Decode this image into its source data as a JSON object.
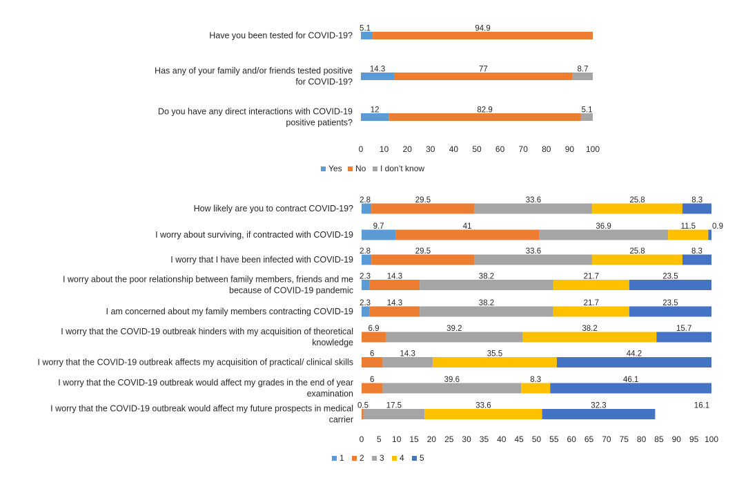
{
  "chart_data": [
    {
      "type": "bar",
      "orientation": "horizontal",
      "stacked": true,
      "categories": [
        "Have you been tested for COVID-19?",
        "Has any of your family and/or friends tested positive for COVID-19?",
        "Do you have any direct interactions with COVID-19 positive patients?"
      ],
      "series": [
        {
          "name": "Yes",
          "color": "#5B9BD5",
          "values": [
            5.1,
            14.3,
            12
          ]
        },
        {
          "name": "No",
          "color": "#ED7D31",
          "values": [
            94.9,
            77,
            82.9
          ]
        },
        {
          "name": "I don’t know",
          "color": "#A5A5A5",
          "values": [
            0,
            8.7,
            5.1
          ]
        }
      ],
      "xlim": [
        0,
        100
      ],
      "xticks": [
        0,
        10,
        20,
        30,
        40,
        50,
        60,
        70,
        80,
        90,
        100
      ],
      "legend_position": "bottom",
      "grid": false
    },
    {
      "type": "bar",
      "orientation": "horizontal",
      "stacked": true,
      "categories": [
        "How likely are you to contract COVID-19?",
        "I worry about surviving, if contracted with COVID-19",
        "I worry that I have been infected with COVID-19",
        "I worry about the poor relationship between family members, friends and me because of COVID-19 pandemic",
        "I am concerned about my family members contracting COVID-19",
        "I worry that the COVID-19 outbreak hinders with my acquisition of theoretical knowledge",
        "I worry that the COVID-19 outbreak affects my acquisition of practical/ clinical skills",
        "I worry that the COVID-19 outbreak would affect my grades in the end of year examination",
        "I worry that the COVID-19 outbreak would affect my future prospects in medical carrier"
      ],
      "series": [
        {
          "name": "1",
          "color": "#5B9BD5",
          "values": [
            2.8,
            9.7,
            2.8,
            2.3,
            2.3,
            0,
            0,
            0,
            0
          ]
        },
        {
          "name": "2",
          "color": "#ED7D31",
          "values": [
            29.5,
            41,
            29.5,
            14.3,
            14.3,
            6.9,
            6,
            6,
            0.5
          ]
        },
        {
          "name": "3",
          "color": "#A5A5A5",
          "values": [
            33.6,
            36.9,
            33.6,
            38.2,
            38.2,
            39.2,
            14.3,
            39.6,
            17.5
          ]
        },
        {
          "name": "4",
          "color": "#FFC000",
          "values": [
            25.8,
            11.5,
            25.8,
            21.7,
            21.7,
            38.2,
            35.5,
            8.3,
            33.6
          ]
        },
        {
          "name": "5",
          "color": "#4472C4",
          "values": [
            8.3,
            0.9,
            8.3,
            23.5,
            23.5,
            15.7,
            44.2,
            46.1,
            32.3
          ]
        }
      ],
      "extra_values": [
        0,
        0,
        0,
        0,
        0,
        0,
        0,
        0,
        16.1
      ],
      "xlim": [
        0,
        100
      ],
      "xticks": [
        0,
        5,
        10,
        15,
        20,
        25,
        30,
        35,
        40,
        45,
        50,
        55,
        60,
        65,
        70,
        75,
        80,
        85,
        90,
        95,
        100
      ],
      "legend_position": "bottom",
      "grid": false
    }
  ]
}
